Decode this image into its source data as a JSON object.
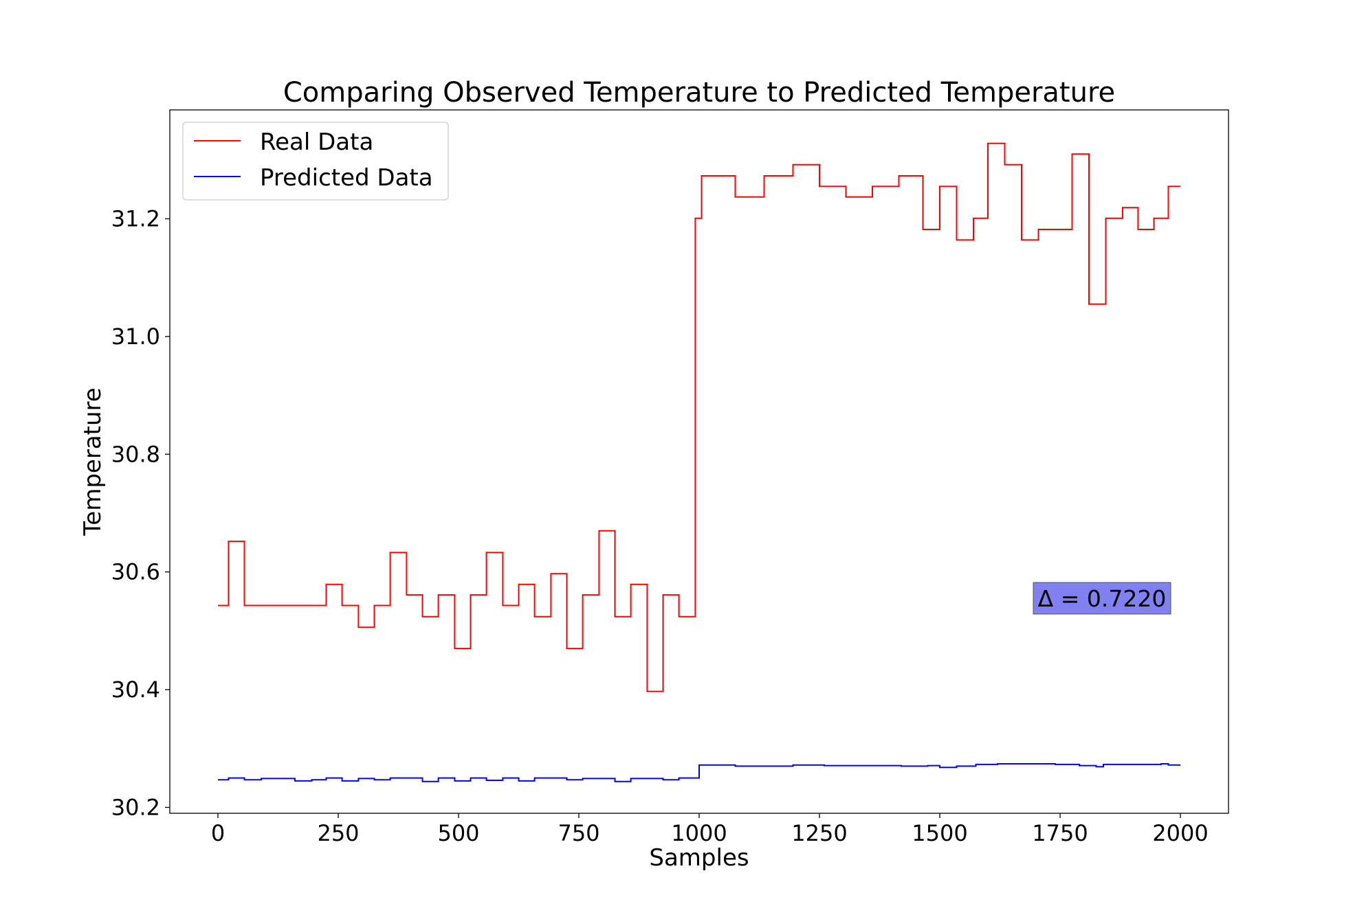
{
  "chart_data": {
    "type": "line",
    "title": "Comparing Observed Temperature to Predicted Temperature",
    "xlabel": "Samples",
    "ylabel": "Temperature",
    "xlim": [
      -100,
      2100
    ],
    "ylim": [
      30.19,
      31.385
    ],
    "xticks": [
      0,
      250,
      500,
      750,
      1000,
      1250,
      1500,
      1750,
      2000
    ],
    "xtick_labels": [
      "0",
      "250",
      "500",
      "750",
      "1000",
      "1250",
      "1500",
      "1750",
      "2000"
    ],
    "yticks": [
      30.2,
      30.4,
      30.6,
      30.8,
      31.0,
      31.2
    ],
    "ytick_labels": [
      "30.2",
      "30.4",
      "30.6",
      "30.8",
      "31.0",
      "31.2"
    ],
    "grid": false,
    "legend": "top-left",
    "annotation": "Δ = 0.7220",
    "annotation_color": "#8080f0",
    "series": [
      {
        "name": "Real Data",
        "color": "#ff0000",
        "step": "post",
        "x": [
          0,
          22,
          55,
          225,
          258,
          292,
          325,
          358,
          392,
          425,
          458,
          492,
          525,
          558,
          592,
          625,
          658,
          692,
          725,
          758,
          792,
          825,
          858,
          892,
          925,
          958,
          992,
          1005,
          1022,
          1075,
          1135,
          1195,
          1250,
          1305,
          1360,
          1415,
          1465,
          1500,
          1535,
          1570,
          1600,
          1635,
          1670,
          1705,
          1775,
          1810,
          1845,
          1880,
          1912,
          1945,
          1975,
          2000
        ],
        "y": [
          30.543,
          30.652,
          30.543,
          30.579,
          30.543,
          30.506,
          30.543,
          30.633,
          30.561,
          30.524,
          30.561,
          30.47,
          30.561,
          30.633,
          30.543,
          30.579,
          30.524,
          30.597,
          30.47,
          30.561,
          30.67,
          30.524,
          30.579,
          30.397,
          30.561,
          30.524,
          31.201,
          31.273,
          31.273,
          31.237,
          31.273,
          31.292,
          31.255,
          31.237,
          31.255,
          31.273,
          31.182,
          31.255,
          31.164,
          31.201,
          31.328,
          31.292,
          31.164,
          31.182,
          31.31,
          31.055,
          31.201,
          31.219,
          31.182,
          31.201,
          31.255,
          31.255
        ]
      },
      {
        "name": "Predicted Data",
        "color": "#0000ff",
        "step": "post",
        "x": [
          0,
          22,
          55,
          90,
          160,
          195,
          225,
          258,
          292,
          325,
          358,
          425,
          458,
          492,
          525,
          558,
          592,
          625,
          658,
          725,
          758,
          825,
          858,
          925,
          958,
          1000,
          1075,
          1195,
          1260,
          1420,
          1475,
          1500,
          1535,
          1575,
          1620,
          1690,
          1740,
          1790,
          1825,
          1840,
          1890,
          1960,
          1975,
          2000
        ],
        "y": [
          30.247,
          30.25,
          30.247,
          30.249,
          30.245,
          30.247,
          30.25,
          30.245,
          30.249,
          30.247,
          30.25,
          30.244,
          30.25,
          30.245,
          30.25,
          30.246,
          30.25,
          30.245,
          30.25,
          30.247,
          30.249,
          30.244,
          30.249,
          30.247,
          30.25,
          30.272,
          30.27,
          30.272,
          30.271,
          30.27,
          30.271,
          30.268,
          30.27,
          30.273,
          30.274,
          30.274,
          30.273,
          30.271,
          30.269,
          30.273,
          30.273,
          30.274,
          30.272,
          30.272
        ]
      }
    ]
  }
}
